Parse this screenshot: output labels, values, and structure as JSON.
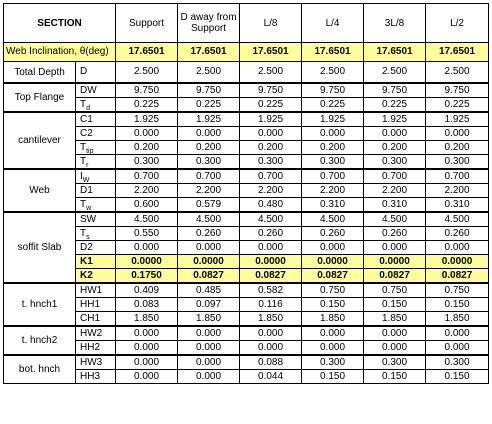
{
  "header": {
    "section": "SECTION",
    "columns": [
      "Support",
      "D away from Support",
      "L/8",
      "L/4",
      "3L/8",
      "L/2"
    ]
  },
  "inclination": {
    "label": "Web Inclination, θ(deg)",
    "values": [
      "17.6501",
      "17.6501",
      "17.6501",
      "17.6501",
      "17.6501",
      "17.6501"
    ]
  },
  "groups": {
    "total_depth": "Total Depth",
    "top_flange": "Top Flange",
    "cantilever": "cantilever",
    "web": "Web",
    "soffit_slab": "soffit Slab",
    "t_hnch1": "t. hnch1",
    "t_hnch2": "t. hnch2",
    "bot_hnch": "bot. hnch"
  },
  "rows": [
    {
      "sym": "D",
      "sub": "",
      "values": [
        "2.500",
        "2.500",
        "2.500",
        "2.500",
        "2.500",
        "2.500"
      ]
    },
    {
      "sym": "DW",
      "sub": "",
      "values": [
        "9.750",
        "9.750",
        "9.750",
        "9.750",
        "9.750",
        "9.750"
      ]
    },
    {
      "sym": "T",
      "sub": "d",
      "values": [
        "0.225",
        "0.225",
        "0.225",
        "0.225",
        "0.225",
        "0.225"
      ]
    },
    {
      "sym": "C1",
      "sub": "",
      "values": [
        "1.925",
        "1.925",
        "1.925",
        "1.925",
        "1.925",
        "1.925"
      ]
    },
    {
      "sym": "C2",
      "sub": "",
      "values": [
        "0.000",
        "0.000",
        "0.000",
        "0.000",
        "0.000",
        "0.000"
      ]
    },
    {
      "sym": "T",
      "sub": "tip",
      "values": [
        "0.200",
        "0.200",
        "0.200",
        "0.200",
        "0.200",
        "0.200"
      ]
    },
    {
      "sym": "T",
      "sub": "r",
      "values": [
        "0.300",
        "0.300",
        "0.300",
        "0.300",
        "0.300",
        "0.300"
      ]
    },
    {
      "sym": "I",
      "sub": "W",
      "values": [
        "0.700",
        "0.700",
        "0.700",
        "0.700",
        "0.700",
        "0.700"
      ]
    },
    {
      "sym": "D1",
      "sub": "",
      "values": [
        "2.200",
        "2.200",
        "2.200",
        "2.200",
        "2.200",
        "2.200"
      ]
    },
    {
      "sym": "T",
      "sub": "w",
      "values": [
        "0.600",
        "0.579",
        "0.480",
        "0.310",
        "0.310",
        "0.310"
      ]
    },
    {
      "sym": "SW",
      "sub": "",
      "values": [
        "4.500",
        "4.500",
        "4.500",
        "4.500",
        "4.500",
        "4.500"
      ]
    },
    {
      "sym": "T",
      "sub": "s",
      "values": [
        "0.550",
        "0.260",
        "0.260",
        "0.260",
        "0.260",
        "0.260"
      ]
    },
    {
      "sym": "D2",
      "sub": "",
      "values": [
        "0.000",
        "0.000",
        "0.000",
        "0.000",
        "0.000",
        "0.000"
      ]
    },
    {
      "sym": "K1",
      "sub": "",
      "values": [
        "0.0000",
        "0.0000",
        "0.0000",
        "0.0000",
        "0.0000",
        "0.0000"
      ]
    },
    {
      "sym": "K2",
      "sub": "",
      "values": [
        "0.1750",
        "0.0827",
        "0.0827",
        "0.0827",
        "0.0827",
        "0.0827"
      ]
    },
    {
      "sym": "HW1",
      "sub": "",
      "values": [
        "0.409",
        "0.485",
        "0.582",
        "0.750",
        "0.750",
        "0.750"
      ]
    },
    {
      "sym": "HH1",
      "sub": "",
      "values": [
        "0.083",
        "0.097",
        "0.116",
        "0.150",
        "0.150",
        "0.150"
      ]
    },
    {
      "sym": "CH1",
      "sub": "",
      "values": [
        "1.850",
        "1.850",
        "1.850",
        "1.850",
        "1.850",
        "1.850"
      ]
    },
    {
      "sym": "HW2",
      "sub": "",
      "values": [
        "0.000",
        "0.000",
        "0.000",
        "0.000",
        "0.000",
        "0.000"
      ]
    },
    {
      "sym": "HH2",
      "sub": "",
      "values": [
        "0.000",
        "0.000",
        "0.000",
        "0.000",
        "0.000",
        "0.000"
      ]
    },
    {
      "sym": "HW3",
      "sub": "",
      "values": [
        "0.000",
        "0.000",
        "0.088",
        "0.300",
        "0.300",
        "0.300"
      ]
    },
    {
      "sym": "HH3",
      "sub": "",
      "values": [
        "0.000",
        "0.000",
        "0.044",
        "0.150",
        "0.150",
        "0.150"
      ]
    }
  ],
  "colors": {
    "highlight": "#ffff99",
    "grid": "#000000"
  }
}
